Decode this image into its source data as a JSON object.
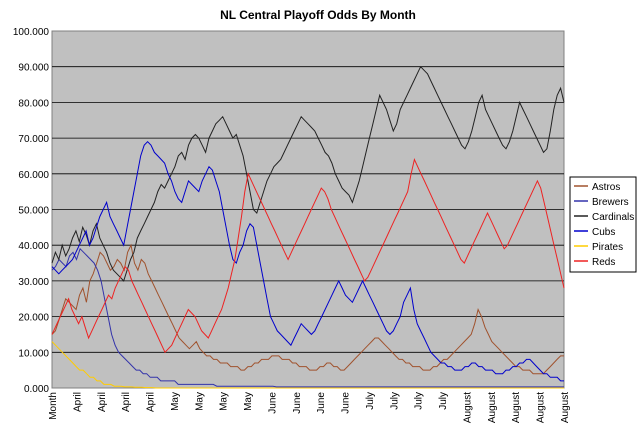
{
  "chart_data": {
    "type": "line",
    "title": "NL Central Playoff Odds By Month",
    "xlabel": "",
    "ylabel": "",
    "ylim": [
      0,
      100
    ],
    "y_ticks": [
      "0.000",
      "10.000",
      "20.000",
      "30.000",
      "40.000",
      "50.000",
      "60.000",
      "70.000",
      "80.000",
      "90.000",
      "100.000"
    ],
    "x_tick_labels": [
      "Month",
      "April",
      "April",
      "April",
      "April",
      "May",
      "May",
      "May",
      "May",
      "June",
      "June",
      "June",
      "June",
      "July",
      "July",
      "July",
      "July",
      "August",
      "August",
      "August",
      "August",
      "August"
    ],
    "grid": "horizontal",
    "legend_position": "right",
    "plot_background": "#c0c0c0",
    "series": [
      {
        "name": "Astros",
        "color": "#a0522d",
        "values": [
          15,
          16,
          19,
          22,
          25,
          24,
          23,
          22,
          26,
          28,
          24,
          30,
          32,
          35,
          38,
          37,
          35,
          33,
          34,
          36,
          35,
          33,
          38,
          40,
          35,
          33,
          36,
          35,
          32,
          30,
          28,
          26,
          24,
          22,
          20,
          18,
          16,
          14,
          13,
          12,
          11,
          12,
          13,
          11,
          10,
          9,
          9,
          8,
          8,
          7,
          7,
          7,
          6,
          6,
          6,
          5,
          5,
          6,
          6,
          7,
          7,
          8,
          8,
          8,
          9,
          9,
          9,
          8,
          8,
          8,
          7,
          7,
          6,
          6,
          6,
          5,
          5,
          5,
          6,
          6,
          7,
          7,
          6,
          6,
          5,
          5,
          6,
          7,
          8,
          9,
          10,
          11,
          12,
          13,
          14,
          14,
          13,
          12,
          11,
          10,
          9,
          8,
          8,
          7,
          7,
          6,
          6,
          6,
          5,
          5,
          5,
          6,
          6,
          7,
          8,
          8,
          9,
          10,
          11,
          12,
          13,
          14,
          15,
          18,
          22,
          20,
          17,
          15,
          13,
          12,
          11,
          10,
          9,
          8,
          7,
          6,
          6,
          5,
          5,
          5,
          4,
          4,
          4,
          4,
          5,
          6,
          7,
          8,
          9,
          9
        ]
      },
      {
        "name": "Brewers",
        "color": "#3333aa",
        "values": [
          33,
          34,
          36,
          35,
          34,
          37,
          38,
          36,
          39,
          38,
          37,
          36,
          35,
          33,
          30,
          25,
          20,
          15,
          12,
          10,
          9,
          8,
          7,
          6,
          5,
          5,
          4,
          4,
          3,
          3,
          3,
          2,
          2,
          2,
          2,
          2,
          1,
          1,
          1,
          1,
          1,
          1,
          1,
          1,
          1,
          1,
          1,
          0.5,
          0.5,
          0.5,
          0.5,
          0.5,
          0.5,
          0.5,
          0.5,
          0.5,
          0.5,
          0.5,
          0.5,
          0.5,
          0.5,
          0.5,
          0.5,
          0.5,
          0.3,
          0.3,
          0.3,
          0.3,
          0.3,
          0.3,
          0.3,
          0.3,
          0.3,
          0.3,
          0.3,
          0.3,
          0.3,
          0.3,
          0.3,
          0.3,
          0.3,
          0.3,
          0.3,
          0.3,
          0.3,
          0.3,
          0.3,
          0.3,
          0.3,
          0.3,
          0.3,
          0.3,
          0.3,
          0.3,
          0.3,
          0.3,
          0.3,
          0.3,
          0.3,
          0.3,
          0.3,
          0.3,
          0.3,
          0.3,
          0.3,
          0.3,
          0.3,
          0.3,
          0.3,
          0.3,
          0.3,
          0.3,
          0.3,
          0.3,
          0.3,
          0.3,
          0.3,
          0.3,
          0.3,
          0.3,
          0.3,
          0.3,
          0.3,
          0.3,
          0.3,
          0.3,
          0.3,
          0.3,
          0.3,
          0.3,
          0.3,
          0.3,
          0.3,
          0.3,
          0.3,
          0.3,
          0.3,
          0.3,
          0.3,
          0.3,
          0.3,
          0.3,
          0.3,
          0.3,
          0.3,
          0.3,
          0.3
        ]
      },
      {
        "name": "Cardinals",
        "color": "#222222",
        "values": [
          35,
          38,
          36,
          40,
          37,
          39,
          42,
          44,
          41,
          45,
          43,
          40,
          44,
          46,
          42,
          40,
          38,
          35,
          33,
          32,
          31,
          30,
          33,
          36,
          38,
          42,
          44,
          46,
          48,
          50,
          52,
          55,
          57,
          56,
          58,
          60,
          62,
          65,
          66,
          64,
          68,
          70,
          71,
          70,
          68,
          66,
          70,
          72,
          74,
          75,
          76,
          74,
          72,
          70,
          71,
          68,
          65,
          60,
          55,
          50,
          49,
          52,
          55,
          58,
          60,
          62,
          63,
          64,
          66,
          68,
          70,
          72,
          74,
          76,
          75,
          74,
          73,
          72,
          70,
          68,
          66,
          65,
          63,
          60,
          58,
          56,
          55,
          54,
          52,
          55,
          58,
          62,
          66,
          70,
          74,
          78,
          82,
          80,
          78,
          75,
          72,
          74,
          78,
          80,
          82,
          84,
          86,
          88,
          90,
          89,
          88,
          86,
          84,
          82,
          80,
          78,
          76,
          74,
          72,
          70,
          68,
          67,
          69,
          72,
          76,
          80,
          82,
          78,
          76,
          74,
          72,
          70,
          68,
          67,
          69,
          72,
          76,
          80,
          78,
          76,
          74,
          72,
          70,
          68,
          66,
          67,
          72,
          78,
          82,
          84,
          80
        ]
      },
      {
        "name": "Cubs",
        "color": "#0000cc",
        "values": [
          34,
          33,
          32,
          33,
          34,
          35,
          36,
          38,
          40,
          42,
          44,
          40,
          42,
          45,
          48,
          50,
          52,
          48,
          46,
          44,
          42,
          40,
          45,
          50,
          55,
          60,
          65,
          68,
          69,
          68,
          66,
          65,
          64,
          63,
          60,
          58,
          55,
          53,
          52,
          55,
          58,
          57,
          56,
          55,
          58,
          60,
          62,
          61,
          58,
          55,
          50,
          45,
          40,
          36,
          35,
          38,
          40,
          44,
          46,
          45,
          40,
          35,
          30,
          25,
          20,
          18,
          16,
          15,
          14,
          13,
          12,
          14,
          16,
          18,
          17,
          16,
          15,
          16,
          18,
          20,
          22,
          24,
          26,
          28,
          30,
          28,
          26,
          25,
          24,
          26,
          28,
          30,
          28,
          26,
          24,
          22,
          20,
          18,
          16,
          15,
          16,
          18,
          20,
          24,
          26,
          28,
          22,
          18,
          16,
          14,
          12,
          10,
          9,
          8,
          7,
          7,
          6,
          6,
          5,
          5,
          5,
          6,
          6,
          7,
          7,
          6,
          6,
          5,
          5,
          5,
          4,
          4,
          4,
          5,
          5,
          6,
          6,
          7,
          7,
          8,
          8,
          7,
          6,
          5,
          4,
          4,
          3,
          3,
          3,
          2,
          2
        ]
      },
      {
        "name": "Pirates",
        "color": "#ffcc00",
        "values": [
          13,
          12,
          11,
          10,
          9,
          8,
          7,
          6,
          5,
          5,
          4,
          3,
          3,
          2,
          2,
          1,
          1,
          1,
          0.5,
          0.5,
          0.5,
          0.3,
          0.3,
          0.3,
          0.2,
          0.2,
          0.2,
          0.1,
          0.1,
          0.1,
          0,
          0,
          0,
          0,
          0,
          0,
          0,
          0,
          0,
          0,
          0,
          0,
          0,
          0,
          0,
          0,
          0,
          0,
          0,
          0,
          0,
          0,
          0,
          0,
          0,
          0,
          0,
          0,
          0,
          0,
          0,
          0,
          0,
          0,
          0,
          0,
          0,
          0,
          0,
          0,
          0,
          0,
          0,
          0,
          0,
          0,
          0,
          0,
          0,
          0,
          0,
          0,
          0,
          0,
          0,
          0,
          0,
          0,
          0,
          0,
          0,
          0,
          0,
          0,
          0,
          0,
          0,
          0,
          0,
          0,
          0,
          0,
          0,
          0,
          0,
          0,
          0,
          0,
          0,
          0,
          0,
          0,
          0,
          0,
          0,
          0,
          0,
          0,
          0,
          0,
          0,
          0,
          0,
          0,
          0,
          0,
          0,
          0,
          0,
          0,
          0,
          0,
          0,
          0,
          0,
          0,
          0,
          0,
          0,
          0,
          0,
          0,
          0,
          0,
          0,
          0,
          0,
          0,
          0
        ]
      },
      {
        "name": "Reds",
        "color": "#ee2222",
        "values": [
          15,
          17,
          19,
          21,
          23,
          25,
          22,
          20,
          18,
          20,
          17,
          14,
          16,
          18,
          20,
          22,
          24,
          26,
          25,
          28,
          30,
          32,
          34,
          33,
          30,
          28,
          26,
          24,
          22,
          20,
          18,
          16,
          14,
          12,
          10,
          11,
          12,
          14,
          16,
          18,
          20,
          22,
          21,
          20,
          18,
          16,
          15,
          14,
          16,
          18,
          20,
          22,
          25,
          28,
          32,
          36,
          42,
          48,
          55,
          60,
          58,
          56,
          54,
          52,
          50,
          48,
          46,
          44,
          42,
          40,
          38,
          36,
          38,
          40,
          42,
          44,
          46,
          48,
          50,
          52,
          54,
          56,
          55,
          53,
          50,
          48,
          46,
          44,
          42,
          40,
          38,
          36,
          34,
          32,
          30,
          31,
          33,
          35,
          37,
          39,
          41,
          43,
          45,
          47,
          49,
          51,
          53,
          55,
          60,
          64,
          62,
          60,
          58,
          56,
          54,
          52,
          50,
          48,
          46,
          44,
          42,
          40,
          38,
          36,
          35,
          37,
          39,
          41,
          43,
          45,
          47,
          49,
          47,
          45,
          43,
          41,
          39,
          40,
          42,
          44,
          46,
          48,
          50,
          52,
          54,
          56,
          58,
          56,
          52,
          48,
          44,
          40,
          36,
          32,
          28
        ]
      }
    ]
  }
}
